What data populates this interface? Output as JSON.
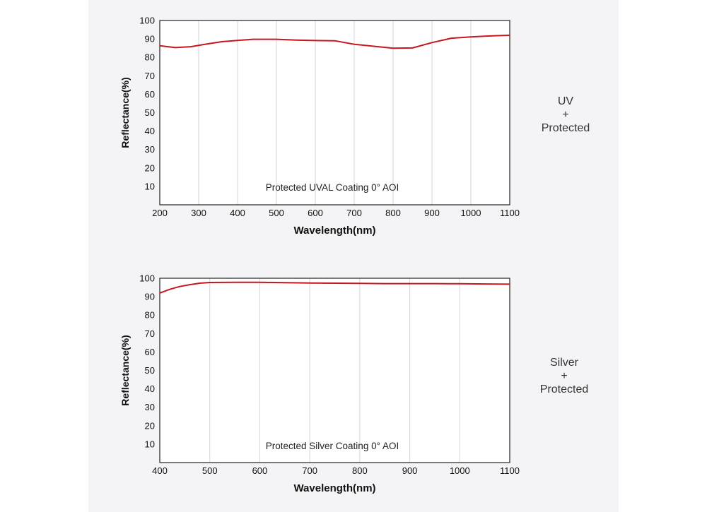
{
  "side_labels": [
    {
      "line1": "UV",
      "line2": "+",
      "line3": "Protected"
    },
    {
      "line1": "Silver",
      "line2": "+",
      "line3": "Protected"
    }
  ],
  "chart_data": [
    {
      "type": "line",
      "title": "",
      "annotation": "Protected UVAL Coating  0°  AOI",
      "xlabel": "Wavelength(nm)",
      "ylabel": "Reflectance(%)",
      "xlim": [
        200,
        1100
      ],
      "ylim": [
        0,
        100
      ],
      "xticks": [
        200,
        300,
        400,
        500,
        600,
        700,
        800,
        900,
        1000,
        1100
      ],
      "yticks": [
        10,
        20,
        30,
        40,
        50,
        60,
        70,
        80,
        90,
        100
      ],
      "grid": "vertical",
      "color": "#c8161d",
      "series": [
        {
          "x": [
            200,
            240,
            280,
            320,
            360,
            400,
            440,
            500,
            550,
            600,
            650,
            700,
            750,
            800,
            850,
            900,
            950,
            1000,
            1050,
            1100
          ],
          "y": [
            86.3,
            85.3,
            85.8,
            87.2,
            88.5,
            89.2,
            89.8,
            89.8,
            89.4,
            89.1,
            89.0,
            87.1,
            86.0,
            85.0,
            85.1,
            88.0,
            90.4,
            91.1,
            91.6,
            92.0
          ]
        }
      ]
    },
    {
      "type": "line",
      "title": "",
      "annotation": "Protected Silver Coating  0°  AOI",
      "xlabel": "Wavelength(nm)",
      "ylabel": "Reflectance(%)",
      "xlim": [
        400,
        1100
      ],
      "ylim": [
        0,
        100
      ],
      "xticks": [
        400,
        500,
        600,
        700,
        800,
        900,
        1000,
        1100
      ],
      "yticks": [
        10,
        20,
        30,
        40,
        50,
        60,
        70,
        80,
        90,
        100
      ],
      "grid": "vertical",
      "color": "#c8161d",
      "series": [
        {
          "x": [
            400,
            420,
            440,
            460,
            480,
            500,
            550,
            600,
            650,
            700,
            750,
            800,
            850,
            900,
            950,
            1000,
            1050,
            1100
          ],
          "y": [
            92.0,
            94.0,
            95.5,
            96.5,
            97.3,
            97.7,
            97.8,
            97.8,
            97.6,
            97.4,
            97.3,
            97.2,
            97.1,
            97.1,
            97.1,
            97.0,
            96.9,
            96.8
          ]
        }
      ]
    }
  ]
}
